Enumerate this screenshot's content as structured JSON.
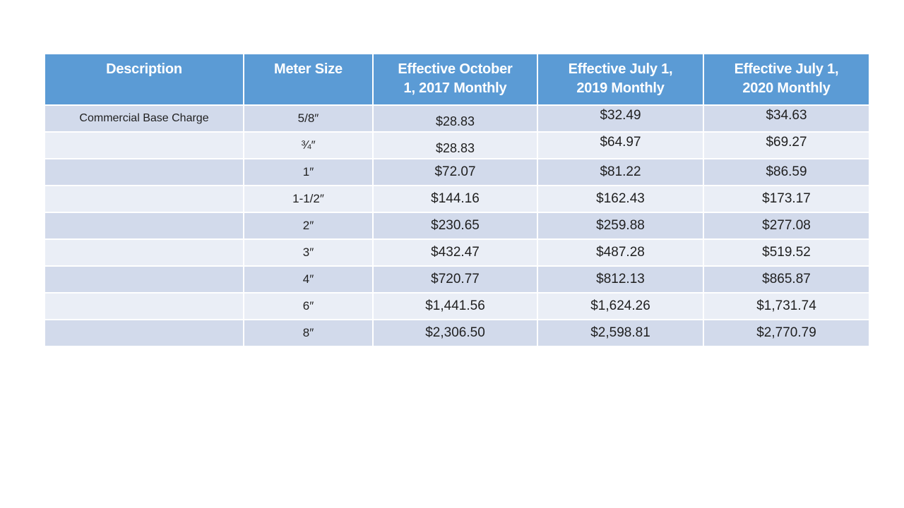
{
  "table": {
    "columns": [
      {
        "id": "description",
        "label": "Description"
      },
      {
        "id": "meter-size",
        "label": "Meter Size"
      },
      {
        "id": "rate-2017",
        "label": "Effective October\n1, 2017 Monthly"
      },
      {
        "id": "rate-2019",
        "label": "Effective July 1,\n2019 Monthly"
      },
      {
        "id": "rate-2020",
        "label": "Effective July 1,\n2020 Monthly"
      }
    ],
    "rows": [
      {
        "description": "Commercial Base Charge",
        "meter_size": "5/8″",
        "values": [
          "$28.83",
          "$32.49",
          "$34.63"
        ]
      },
      {
        "description": "",
        "meter_size": "¾″",
        "values": [
          "$28.83",
          "$64.97",
          "$69.27"
        ]
      },
      {
        "description": "",
        "meter_size": "1″",
        "values": [
          "$72.07",
          "$81.22",
          "$86.59"
        ]
      },
      {
        "description": "",
        "meter_size": "1-1/2″",
        "values": [
          "$144.16",
          "$162.43",
          "$173.17"
        ]
      },
      {
        "description": "",
        "meter_size": "2″",
        "values": [
          "$230.65",
          "$259.88",
          "$277.08"
        ]
      },
      {
        "description": "",
        "meter_size": "3″",
        "values": [
          "$432.47",
          "$487.28",
          "$519.52"
        ]
      },
      {
        "description": "",
        "meter_size": "4″",
        "values": [
          "$720.77",
          "$812.13",
          "$865.87"
        ]
      },
      {
        "description": "",
        "meter_size": "6″",
        "values": [
          "$1,441.56",
          "$1,624.26",
          "$1,731.74"
        ]
      },
      {
        "description": "",
        "meter_size": "8″",
        "values": [
          "$2,306.50",
          "$2,598.81",
          "$2,770.79"
        ]
      }
    ],
    "colors": {
      "header_bg": "#5B9BD5",
      "header_text": "#FFFFFF",
      "band_dark": "#D2DAEB",
      "band_light": "#EAEEF6",
      "body_text": "#1F1F1F",
      "page_bg": "#FFFFFF"
    }
  }
}
